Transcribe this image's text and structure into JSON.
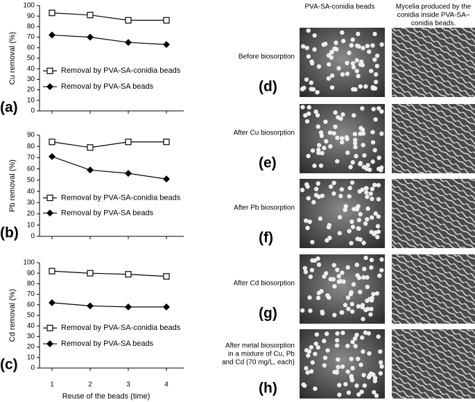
{
  "chart_data": [
    {
      "type": "line",
      "panel": "(a)",
      "ylabel": "Cu removal (%)",
      "categories": [
        "1",
        "2",
        "3",
        "4"
      ],
      "ylim": [
        0,
        100
      ],
      "yticks": [
        0,
        10,
        20,
        30,
        40,
        50,
        60,
        70,
        80,
        90,
        100
      ],
      "series": [
        {
          "name": "Removal by PVA-SA-conidia beads",
          "color": "#000000",
          "marker": "square",
          "values": [
            93,
            91,
            86,
            86
          ]
        },
        {
          "name": "Removal by PVA-SA beads",
          "color": "#000000",
          "marker": "diamond",
          "values": [
            72,
            70,
            65,
            63
          ]
        }
      ]
    },
    {
      "type": "line",
      "panel": "(b)",
      "ylabel": "Pb removal (%)",
      "categories": [
        "1",
        "2",
        "3",
        "4"
      ],
      "ylim": [
        0,
        90
      ],
      "yticks": [
        0,
        10,
        20,
        30,
        40,
        50,
        60,
        70,
        80,
        90
      ],
      "series": [
        {
          "name": "Removal by PVA-SA-conidia beads",
          "color": "#000000",
          "marker": "square",
          "values": [
            84,
            79,
            84,
            84
          ]
        },
        {
          "name": "Removal by PVA-SA beads",
          "color": "#000000",
          "marker": "diamond",
          "values": [
            71,
            59,
            56,
            51
          ]
        }
      ]
    },
    {
      "type": "line",
      "panel": "(c)",
      "ylabel": "Cd removal (%)",
      "xlabel": "Reuse of the beads (time)",
      "categories": [
        "1",
        "2",
        "3",
        "4"
      ],
      "ylim": [
        0,
        100
      ],
      "yticks": [
        0,
        10,
        20,
        30,
        40,
        50,
        60,
        70,
        80,
        90,
        100
      ],
      "series": [
        {
          "name": "Removal by PVA-SA-conidia beads",
          "color": "#000000",
          "marker": "square",
          "values": [
            92,
            90,
            89,
            87
          ]
        },
        {
          "name": "Removal by PVA-SA beads",
          "color": "#000000",
          "marker": "diamond",
          "values": [
            62,
            59,
            58,
            58
          ]
        }
      ]
    }
  ],
  "photos": {
    "column_headers": [
      [
        "PVA-SA-conidia beads"
      ],
      [
        "Mycelia produced by the",
        "conidia inside PVA-SA–",
        "conidia beads."
      ]
    ],
    "rows": [
      {
        "label": [
          "Before biosorption"
        ],
        "letter": "(d)"
      },
      {
        "label": [
          "After Cu  biosorption"
        ],
        "letter": "(e)"
      },
      {
        "label": [
          "After Pb biosorption"
        ],
        "letter": "(f)"
      },
      {
        "label": [
          "After Cd  biosorption"
        ],
        "letter": "(g)"
      },
      {
        "label": [
          "After metal biosorption",
          "in a mixture of Cu, Pb",
          "and Cd (70 mg/L, each)"
        ],
        "letter": "(h)"
      }
    ]
  }
}
